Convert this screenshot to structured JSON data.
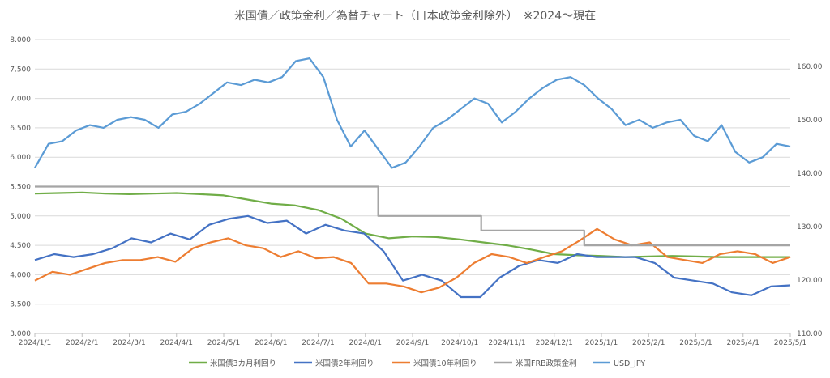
{
  "chart_data": {
    "type": "line",
    "title": "米国債／政策金利／為替チャート（日本政策金利除外）　※2024～現在",
    "grid": true,
    "legend_position": "bottom",
    "x_ticks": [
      "2024/1/1",
      "2024/2/1",
      "2024/3/1",
      "2024/4/1",
      "2024/5/1",
      "2024/6/1",
      "2024/7/1",
      "2024/8/1",
      "2024/9/1",
      "2024/10/1",
      "2024/11/1",
      "2024/12/1",
      "2025/1/1",
      "2025/2/1",
      "2025/3/1",
      "2025/4/1",
      "2025/5/1"
    ],
    "y_left": {
      "ticks": [
        "3.000",
        "3.500",
        "4.000",
        "4.500",
        "5.000",
        "5.500",
        "6.000",
        "6.500",
        "7.000",
        "7.500",
        "8.000"
      ],
      "range": [
        3.0,
        8.0
      ]
    },
    "y_right": {
      "ticks": [
        "110.00",
        "120.00",
        "130.00",
        "140.00",
        "150.00",
        "160.00"
      ],
      "range": [
        110,
        165
      ]
    },
    "series": [
      {
        "name": "米国債3カ月利回り",
        "axis": "left",
        "color": "#70ad47",
        "values": [
          5.38,
          5.39,
          5.4,
          5.38,
          5.37,
          5.38,
          5.39,
          5.37,
          5.35,
          5.28,
          5.21,
          5.18,
          5.1,
          4.95,
          4.7,
          4.62,
          4.65,
          4.64,
          4.6,
          4.55,
          4.5,
          4.43,
          4.35,
          4.33,
          4.32,
          4.3,
          4.31,
          4.32,
          4.31,
          4.3,
          4.3,
          4.3,
          4.3
        ]
      },
      {
        "name": "米国債2年利回り",
        "axis": "left",
        "color": "#4472c4",
        "values": [
          4.25,
          4.35,
          4.3,
          4.35,
          4.45,
          4.62,
          4.55,
          4.7,
          4.6,
          4.85,
          4.95,
          5.0,
          4.88,
          4.92,
          4.7,
          4.85,
          4.75,
          4.7,
          4.4,
          3.9,
          4.0,
          3.9,
          3.62,
          3.62,
          3.95,
          4.15,
          4.25,
          4.2,
          4.35,
          4.3,
          4.3,
          4.3,
          4.2,
          3.95,
          3.9,
          3.85,
          3.7,
          3.65,
          3.8,
          3.82
        ]
      },
      {
        "name": "米国債10年利回り",
        "axis": "left",
        "color": "#ed7d31",
        "values": [
          3.9,
          4.05,
          4.0,
          4.1,
          4.2,
          4.25,
          4.25,
          4.3,
          4.22,
          4.45,
          4.55,
          4.62,
          4.5,
          4.45,
          4.3,
          4.4,
          4.28,
          4.3,
          4.2,
          3.85,
          3.85,
          3.8,
          3.7,
          3.78,
          3.95,
          4.2,
          4.35,
          4.3,
          4.2,
          4.3,
          4.4,
          4.58,
          4.78,
          4.6,
          4.5,
          4.55,
          4.3,
          4.25,
          4.2,
          4.35,
          4.4,
          4.35,
          4.2,
          4.3
        ]
      },
      {
        "name": "米国FRB政策金利",
        "axis": "left",
        "color": "#a5a5a5",
        "values": [
          5.5,
          5.5,
          5.5,
          5.5,
          5.5,
          5.5,
          5.5,
          5.5,
          5.5,
          5.5,
          5.0,
          5.0,
          5.0,
          4.75,
          4.75,
          4.75,
          4.5,
          4.5,
          4.5,
          4.5,
          4.5,
          4.5,
          4.5
        ]
      },
      {
        "name": "USD_JPY",
        "axis": "right",
        "color": "#5b9bd5",
        "values": [
          141.0,
          145.5,
          146.0,
          148.0,
          149.0,
          148.5,
          150.0,
          150.5,
          150.0,
          148.5,
          151.0,
          151.5,
          153.0,
          155.0,
          157.0,
          156.5,
          157.5,
          157.0,
          158.0,
          161.0,
          161.5,
          158.0,
          150.0,
          145.0,
          148.0,
          144.5,
          141.0,
          142.0,
          145.0,
          148.5,
          150.0,
          152.0,
          154.0,
          153.0,
          149.5,
          151.5,
          154.0,
          156.0,
          157.5,
          158.0,
          156.5,
          154.0,
          152.0,
          149.0,
          150.0,
          148.5,
          149.5,
          150.0,
          147.0,
          146.0,
          149.0,
          144.0,
          142.0,
          143.0,
          145.5,
          145.0
        ]
      }
    ]
  }
}
